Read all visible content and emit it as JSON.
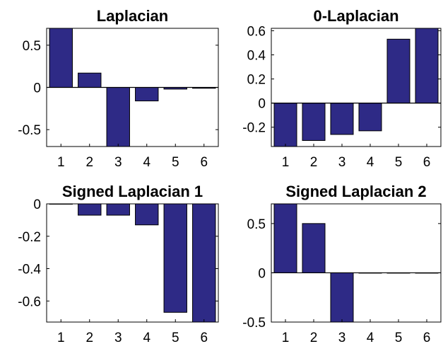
{
  "colors": {
    "bar_fill": "#2e2a86",
    "axis": "#000000"
  },
  "chart_data": [
    {
      "type": "bar",
      "title": "Laplacian",
      "categories": [
        "1",
        "2",
        "3",
        "4",
        "5",
        "6"
      ],
      "values": [
        0.7,
        0.17,
        -0.71,
        -0.16,
        -0.02,
        -0.01
      ],
      "ylim": [
        -0.7,
        0.7
      ],
      "yticks": [
        -0.5,
        0,
        0.5
      ],
      "ytick_labels": [
        "-0.5",
        "0",
        "0.5"
      ],
      "grid": false
    },
    {
      "type": "bar",
      "title": "0-Laplacian",
      "categories": [
        "1",
        "2",
        "3",
        "4",
        "5",
        "6"
      ],
      "values": [
        -0.38,
        -0.31,
        -0.26,
        -0.23,
        0.53,
        0.62
      ],
      "ylim": [
        -0.36,
        0.62
      ],
      "yticks": [
        -0.2,
        0,
        0.2,
        0.4,
        0.6
      ],
      "ytick_labels": [
        "-0.2",
        "0",
        "0.2",
        "0.4",
        "0.6"
      ],
      "grid": false
    },
    {
      "type": "bar",
      "title": "Signed Laplacian 1",
      "categories": [
        "1",
        "2",
        "3",
        "4",
        "5",
        "6"
      ],
      "values": [
        0.0,
        -0.07,
        -0.07,
        -0.13,
        -0.67,
        -0.74
      ],
      "ylim": [
        -0.73,
        0.0
      ],
      "yticks": [
        -0.6,
        -0.4,
        -0.2,
        0
      ],
      "ytick_labels": [
        "-0.6",
        "-0.4",
        "-0.2",
        "0"
      ],
      "grid": false
    },
    {
      "type": "bar",
      "title": "Signed Laplacian 2",
      "categories": [
        "1",
        "2",
        "3",
        "4",
        "5",
        "6"
      ],
      "values": [
        0.71,
        0.5,
        -0.71,
        0.0,
        0.0,
        0.0
      ],
      "ylim": [
        -0.5,
        0.7
      ],
      "yticks": [
        -0.5,
        0,
        0.5
      ],
      "ytick_labels": [
        "-0.5",
        "0",
        "0.5"
      ],
      "grid": false
    }
  ]
}
